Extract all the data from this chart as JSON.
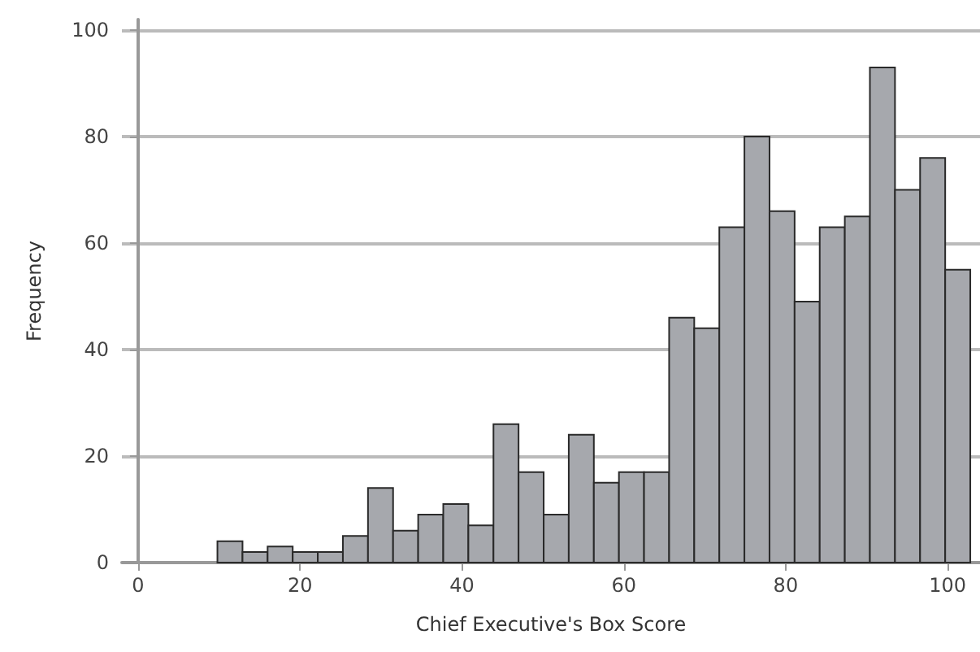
{
  "chart_data": {
    "type": "histogram",
    "xlabel": "Chief Executive's Box Score",
    "ylabel": "Frequency",
    "bins": [
      9.8,
      12.9,
      16,
      19.1,
      22.2,
      25.3,
      28.4,
      31.5,
      34.6,
      37.7,
      40.8,
      43.9,
      47,
      50.1,
      53.2,
      56.3,
      59.4,
      62.5,
      65.6,
      68.7,
      71.8,
      74.9,
      78,
      81.1,
      84.2,
      87.3,
      90.4,
      93.5,
      96.6,
      99.7,
      102.8
    ],
    "values": [
      4,
      2,
      3,
      2,
      2,
      5,
      14,
      6,
      9,
      11,
      7,
      26,
      17,
      9,
      24,
      15,
      17,
      17,
      46,
      44,
      63,
      80,
      66,
      49,
      63,
      65,
      93,
      70,
      76,
      55
    ],
    "color": "#a6a8ad",
    "xlim": [
      -2,
      104
    ],
    "xticks": [
      0,
      20,
      40,
      60,
      80,
      100
    ],
    "ylim": [
      0,
      102
    ],
    "yticks": [
      0,
      20,
      40,
      60,
      80,
      100
    ],
    "grid": "y"
  }
}
